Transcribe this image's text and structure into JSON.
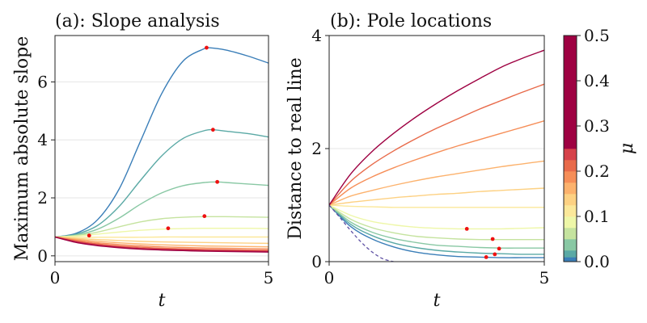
{
  "chart_data": [
    {
      "panel": "a",
      "type": "line",
      "title": "(a): Slope analysis",
      "xlabel": "t",
      "ylabel": "Maximum absolute slope",
      "xlim": [
        0,
        5
      ],
      "ylim": [
        -0.2,
        7.6
      ],
      "xticks": [
        0,
        5
      ],
      "yticks": [
        0,
        2,
        4,
        6
      ],
      "grid": "horizontal",
      "series": [
        {
          "mu": 0.0,
          "color": "#3a7eb8",
          "x": [
            0,
            0.5,
            1,
            1.5,
            2,
            2.5,
            3,
            3.5,
            3.6,
            4,
            4.5,
            5
          ],
          "y": [
            0.65,
            0.78,
            1.25,
            2.3,
            3.95,
            5.6,
            6.72,
            7.15,
            7.18,
            7.1,
            6.9,
            6.65
          ]
        },
        {
          "mu": 0.025,
          "color": "#5aa9a5",
          "x": [
            0,
            0.5,
            1,
            1.5,
            2,
            2.5,
            3,
            3.5,
            3.7,
            4,
            4.5,
            5
          ],
          "y": [
            0.65,
            0.75,
            1.05,
            1.7,
            2.6,
            3.45,
            4.05,
            4.32,
            4.35,
            4.3,
            4.22,
            4.1
          ]
        },
        {
          "mu": 0.05,
          "color": "#89c8a4",
          "x": [
            0,
            0.5,
            1,
            1.5,
            2,
            2.5,
            3,
            3.5,
            3.8,
            4,
            4.5,
            5
          ],
          "y": [
            0.65,
            0.72,
            0.92,
            1.3,
            1.78,
            2.17,
            2.42,
            2.53,
            2.55,
            2.53,
            2.48,
            2.43
          ]
        },
        {
          "mu": 0.075,
          "color": "#c5e39f",
          "x": [
            0,
            0.5,
            1,
            1.5,
            2,
            2.5,
            3,
            3.5,
            4,
            4.5,
            5
          ],
          "y": [
            0.65,
            0.7,
            0.82,
            1.0,
            1.17,
            1.28,
            1.33,
            1.35,
            1.35,
            1.34,
            1.33
          ]
        },
        {
          "mu": 0.1,
          "color": "#eef7a8",
          "x": [
            0,
            0.5,
            1,
            1.5,
            2,
            2.5,
            3,
            3.5,
            4,
            4.5,
            5
          ],
          "y": [
            0.65,
            0.68,
            0.75,
            0.82,
            0.88,
            0.92,
            0.94,
            0.95,
            0.95,
            0.95,
            0.94
          ]
        },
        {
          "mu": 0.125,
          "color": "#fbe89a",
          "x": [
            0,
            0.5,
            1,
            1.5,
            2,
            2.5,
            3,
            3.5,
            4,
            4.5,
            5
          ],
          "y": [
            0.65,
            0.64,
            0.64,
            0.64,
            0.64,
            0.65,
            0.65,
            0.65,
            0.65,
            0.65,
            0.65
          ]
        },
        {
          "mu": 0.15,
          "color": "#fdd183",
          "x": [
            0,
            0.5,
            1,
            1.5,
            2,
            2.5,
            3,
            3.5,
            4,
            4.5,
            5
          ],
          "y": [
            0.65,
            0.6,
            0.56,
            0.53,
            0.5,
            0.48,
            0.47,
            0.46,
            0.45,
            0.44,
            0.43
          ]
        },
        {
          "mu": 0.175,
          "color": "#fcb26d",
          "x": [
            0,
            0.5,
            1,
            1.5,
            2,
            2.5,
            3,
            3.5,
            4,
            4.5,
            5
          ],
          "y": [
            0.65,
            0.57,
            0.5,
            0.45,
            0.41,
            0.38,
            0.36,
            0.34,
            0.33,
            0.32,
            0.31
          ]
        },
        {
          "mu": 0.2,
          "color": "#f68e58",
          "x": [
            0,
            0.5,
            1,
            1.5,
            2,
            2.5,
            3,
            3.5,
            4,
            4.5,
            5
          ],
          "y": [
            0.65,
            0.54,
            0.45,
            0.39,
            0.35,
            0.31,
            0.29,
            0.27,
            0.26,
            0.25,
            0.24
          ]
        },
        {
          "mu": 0.25,
          "color": "#e86a4a",
          "x": [
            0,
            0.5,
            1,
            1.5,
            2,
            2.5,
            3,
            3.5,
            4,
            4.5,
            5
          ],
          "y": [
            0.65,
            0.51,
            0.41,
            0.34,
            0.3,
            0.26,
            0.24,
            0.22,
            0.21,
            0.2,
            0.19
          ]
        },
        {
          "mu": 0.3,
          "color": "#d6424a",
          "x": [
            0,
            0.5,
            1,
            1.5,
            2,
            2.5,
            3,
            3.5,
            4,
            4.5,
            5
          ],
          "y": [
            0.65,
            0.49,
            0.38,
            0.31,
            0.26,
            0.23,
            0.21,
            0.19,
            0.18,
            0.17,
            0.16
          ]
        },
        {
          "mu": 0.4,
          "color": "#b91e4d",
          "x": [
            0,
            0.5,
            1,
            1.5,
            2,
            2.5,
            3,
            3.5,
            4,
            4.5,
            5
          ],
          "y": [
            0.65,
            0.47,
            0.36,
            0.29,
            0.24,
            0.21,
            0.19,
            0.17,
            0.16,
            0.15,
            0.14
          ]
        },
        {
          "mu": 0.5,
          "color": "#9e0142",
          "x": [
            0,
            0.5,
            1,
            1.5,
            2,
            2.5,
            3,
            3.5,
            4,
            4.5,
            5
          ],
          "y": [
            0.65,
            0.46,
            0.35,
            0.28,
            0.23,
            0.2,
            0.18,
            0.16,
            0.15,
            0.14,
            0.13
          ]
        }
      ],
      "markers": {
        "color": "#ee1111",
        "x": [
          0.8,
          2.65,
          3.5,
          3.7,
          3.8,
          3.55
        ],
        "y": [
          0.7,
          0.95,
          1.37,
          4.35,
          2.55,
          7.18
        ]
      }
    },
    {
      "panel": "b",
      "type": "line",
      "title": "(b): Pole locations",
      "xlabel": "t",
      "ylabel": "Distance to real line",
      "xlim": [
        0,
        5
      ],
      "ylim": [
        0,
        4
      ],
      "xticks": [
        0,
        5
      ],
      "yticks": [
        0,
        2,
        4
      ],
      "grid": "horizontal",
      "series": [
        {
          "mu": 0.0,
          "color": "#3a7eb8",
          "x": [
            0,
            0.5,
            1,
            1.5,
            2,
            2.5,
            3,
            3.5,
            4,
            4.5,
            5
          ],
          "y": [
            1.0,
            0.62,
            0.4,
            0.26,
            0.17,
            0.12,
            0.09,
            0.08,
            0.07,
            0.07,
            0.07
          ]
        },
        {
          "mu": 0.025,
          "color": "#5aa9a5",
          "x": [
            0,
            0.5,
            1,
            1.5,
            2,
            2.5,
            3,
            3.5,
            4,
            4.5,
            5
          ],
          "y": [
            1.0,
            0.66,
            0.46,
            0.33,
            0.25,
            0.2,
            0.17,
            0.15,
            0.14,
            0.13,
            0.13
          ]
        },
        {
          "mu": 0.05,
          "color": "#89c8a4",
          "x": [
            0,
            0.5,
            1,
            1.5,
            2,
            2.5,
            3,
            3.5,
            4,
            4.5,
            5
          ],
          "y": [
            1.0,
            0.7,
            0.52,
            0.41,
            0.34,
            0.29,
            0.27,
            0.25,
            0.24,
            0.24,
            0.24
          ]
        },
        {
          "mu": 0.075,
          "color": "#c5e39f",
          "x": [
            0,
            0.5,
            1,
            1.5,
            2,
            2.5,
            3,
            3.5,
            4,
            4.5,
            5
          ],
          "y": [
            1.0,
            0.75,
            0.6,
            0.51,
            0.45,
            0.42,
            0.4,
            0.39,
            0.39,
            0.39,
            0.39
          ]
        },
        {
          "mu": 0.1,
          "color": "#eef7a8",
          "x": [
            0,
            0.5,
            1,
            1.5,
            2,
            2.5,
            3,
            3.5,
            4,
            4.5,
            5
          ],
          "y": [
            1.0,
            0.82,
            0.71,
            0.65,
            0.61,
            0.59,
            0.58,
            0.58,
            0.58,
            0.59,
            0.6
          ]
        },
        {
          "mu": 0.125,
          "color": "#fbe89a",
          "x": [
            0,
            0.5,
            1,
            1.5,
            2,
            2.5,
            3,
            3.5,
            4,
            4.5,
            5
          ],
          "y": [
            1.0,
            0.98,
            0.97,
            0.96,
            0.96,
            0.96,
            0.96,
            0.96,
            0.96,
            0.96,
            0.96
          ]
        },
        {
          "mu": 0.15,
          "color": "#fdd183",
          "x": [
            0,
            0.5,
            1,
            1.5,
            2,
            2.5,
            3,
            3.5,
            4,
            4.5,
            5
          ],
          "y": [
            1.0,
            1.05,
            1.09,
            1.13,
            1.16,
            1.19,
            1.21,
            1.24,
            1.26,
            1.28,
            1.3
          ]
        },
        {
          "mu": 0.175,
          "color": "#fcb26d",
          "x": [
            0,
            0.5,
            1,
            1.5,
            2,
            2.5,
            3,
            3.5,
            4,
            4.5,
            5
          ],
          "y": [
            1.0,
            1.16,
            1.26,
            1.35,
            1.43,
            1.5,
            1.56,
            1.62,
            1.68,
            1.73,
            1.78
          ]
        },
        {
          "mu": 0.2,
          "color": "#f68e58",
          "x": [
            0,
            0.5,
            1,
            1.5,
            2,
            2.5,
            3,
            3.5,
            4,
            4.5,
            5
          ],
          "y": [
            1.0,
            1.3,
            1.5,
            1.66,
            1.8,
            1.93,
            2.05,
            2.16,
            2.27,
            2.38,
            2.49
          ]
        },
        {
          "mu": 0.25,
          "color": "#e86a4a",
          "x": [
            0,
            0.5,
            1,
            1.5,
            2,
            2.5,
            3,
            3.5,
            4,
            4.5,
            5
          ],
          "y": [
            1.0,
            1.42,
            1.72,
            1.96,
            2.17,
            2.36,
            2.53,
            2.7,
            2.85,
            3.0,
            3.14
          ]
        },
        {
          "mu": 0.5,
          "color": "#9e0142",
          "x": [
            0,
            0.5,
            1,
            1.5,
            2,
            2.5,
            3,
            3.5,
            4,
            4.5,
            5
          ],
          "y": [
            1.0,
            1.55,
            1.95,
            2.27,
            2.55,
            2.8,
            3.03,
            3.24,
            3.44,
            3.6,
            3.74
          ]
        }
      ],
      "dashed": {
        "color": "#5d4fa3",
        "x": [
          0,
          0.25,
          0.5,
          0.75,
          1.0,
          1.25,
          1.5
        ],
        "y": [
          1.0,
          0.78,
          0.55,
          0.34,
          0.17,
          0.05,
          0.0
        ]
      },
      "markers": {
        "color": "#ee1111",
        "x": [
          3.2,
          3.8,
          3.95,
          3.85,
          3.65
        ],
        "y": [
          0.58,
          0.4,
          0.23,
          0.13,
          0.08
        ]
      }
    }
  ],
  "colorbar": {
    "label": "μ",
    "ticks": [
      0.0,
      0.1,
      0.2,
      0.3,
      0.4,
      0.5
    ],
    "tick_labels": [
      "0.0",
      "0.1",
      "0.2",
      "0.3",
      "0.4",
      "0.5"
    ],
    "range": [
      0.0,
      0.5
    ],
    "bands": [
      {
        "from": 0.0,
        "to": 0.01,
        "color": "#3a7eb8"
      },
      {
        "from": 0.01,
        "to": 0.025,
        "color": "#5aa9a5"
      },
      {
        "from": 0.025,
        "to": 0.05,
        "color": "#89c8a4"
      },
      {
        "from": 0.05,
        "to": 0.075,
        "color": "#c5e39f"
      },
      {
        "from": 0.075,
        "to": 0.1,
        "color": "#eef7a8"
      },
      {
        "from": 0.1,
        "to": 0.125,
        "color": "#fbe89a"
      },
      {
        "from": 0.125,
        "to": 0.15,
        "color": "#fdd183"
      },
      {
        "from": 0.15,
        "to": 0.175,
        "color": "#fcb26d"
      },
      {
        "from": 0.175,
        "to": 0.2,
        "color": "#f68e58"
      },
      {
        "from": 0.2,
        "to": 0.225,
        "color": "#e86a4a"
      },
      {
        "from": 0.225,
        "to": 0.25,
        "color": "#d6424a"
      },
      {
        "from": 0.25,
        "to": 0.5,
        "color": "#9e0142"
      }
    ]
  }
}
